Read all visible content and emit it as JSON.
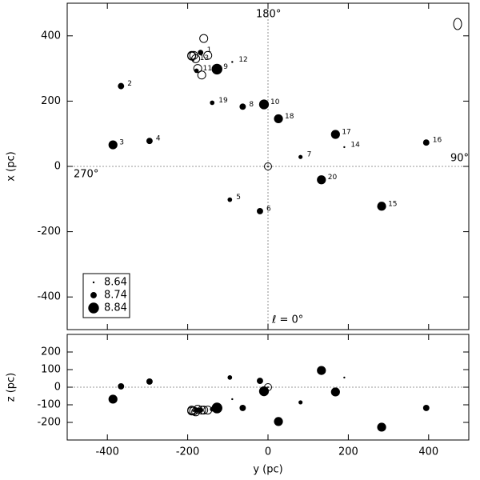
{
  "chart_data": [
    {
      "type": "scatter",
      "ylabel": "x (pc)",
      "xlim": [
        -500,
        500
      ],
      "ylim": [
        -500,
        500
      ],
      "xticks": [
        -400,
        -200,
        0,
        200,
        400
      ],
      "yticks": [
        -400,
        -200,
        0,
        200,
        400
      ],
      "annotations": [
        "180°",
        "90°",
        "270°",
        "ℓ = 0°"
      ],
      "size_legend": [
        8.64,
        8.74,
        8.84
      ],
      "series": [
        {
          "color": "#000000",
          "filled": true,
          "x": [
            -168,
            -366,
            -386,
            -295,
            -95,
            -20,
            81,
            -63,
            -127,
            -10,
            -178,
            -89,
            -186,
            190,
            283,
            394,
            168,
            26,
            -139,
            133
          ],
          "values": [
            349,
            246,
            66,
            78,
            -102,
            -137,
            29,
            183,
            298,
            190,
            293,
            320,
            325,
            59,
            -122,
            73,
            98,
            146,
            195,
            -41
          ],
          "sizes": [
            8.72,
            8.74,
            8.8,
            8.74,
            8.7,
            8.74,
            8.69,
            8.74,
            8.84,
            8.82,
            8.7,
            8.64,
            8.64,
            8.64,
            8.8,
            8.74,
            8.8,
            8.8,
            8.7,
            8.8
          ],
          "labels": [
            "1",
            "2",
            "3",
            "4",
            "5",
            "6",
            "7",
            "8",
            "9",
            "10",
            "11",
            "12",
            "13",
            "14",
            "15",
            "16",
            "17",
            "18",
            "19",
            "20"
          ]
        },
        {
          "color": "#000000",
          "filled": false,
          "x": [
            -160,
            -185,
            -150,
            -180,
            -190,
            -175,
            -165,
            -190
          ],
          "values": [
            392,
            340,
            340,
            330,
            338,
            300,
            280,
            340
          ]
        },
        {
          "color": "#000000",
          "marker": "sun",
          "x": [
            0
          ],
          "values": [
            0
          ]
        }
      ]
    },
    {
      "type": "scatter",
      "xlabel": "y (pc)",
      "ylabel": "z (pc)",
      "xlim": [
        -500,
        500
      ],
      "ylim": [
        -300,
        300
      ],
      "xticks": [
        -400,
        -200,
        0,
        200,
        400
      ],
      "yticks": [
        -200,
        -100,
        0,
        100,
        200
      ],
      "series": [
        {
          "color": "#000000",
          "filled": true,
          "x": [
            -168,
            -366,
            -386,
            -295,
            -95,
            -20,
            81,
            -63,
            -127,
            -10,
            -178,
            -89,
            -186,
            190,
            283,
            394,
            168,
            26,
            -139,
            133
          ],
          "values": [
            -130,
            5,
            -68,
            32,
            55,
            36,
            -86,
            -118,
            -118,
            -23,
            -130,
            -68,
            -135,
            55,
            -227,
            -118,
            -27,
            -195,
            -125,
            95
          ],
          "sizes": [
            8.72,
            8.74,
            8.8,
            8.74,
            8.7,
            8.74,
            8.69,
            8.74,
            8.84,
            8.82,
            8.7,
            8.64,
            8.64,
            8.64,
            8.8,
            8.74,
            8.8,
            8.8,
            8.7,
            8.8
          ]
        },
        {
          "color": "#000000",
          "filled": false,
          "x": [
            -160,
            -185,
            -150,
            -180,
            -190,
            -175,
            -165,
            -190
          ],
          "values": [
            -130,
            -135,
            -130,
            -140,
            -130,
            -125,
            -130,
            -135
          ]
        },
        {
          "color": "#000000",
          "marker": "sun",
          "x": [
            0
          ],
          "values": [
            0
          ]
        }
      ]
    }
  ]
}
